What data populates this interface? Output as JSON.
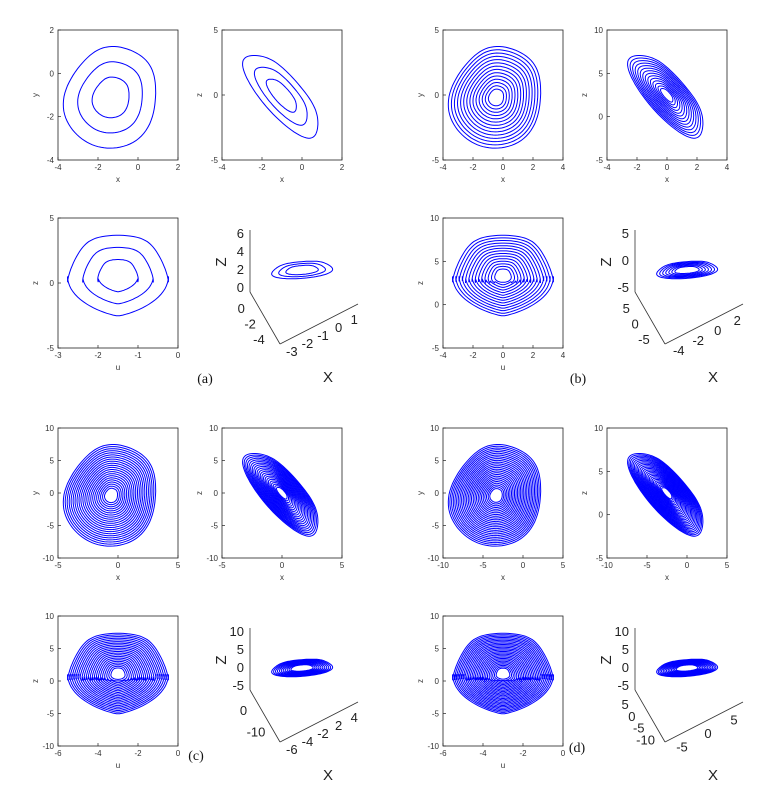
{
  "chart_data": [
    {
      "panel": "a",
      "caption": "(a)",
      "subplots": [
        {
          "type": "line",
          "plot": "phase",
          "xlabel": "x",
          "ylabel": "y",
          "xticks": [
            "-4",
            "-2",
            "0",
            "2"
          ],
          "yticks": [
            "2",
            "0",
            "-2",
            "-4"
          ],
          "xlim": [
            -4,
            2
          ],
          "ylim": [
            -4,
            2
          ],
          "shape": "loop",
          "color": "#0000ff"
        },
        {
          "type": "line",
          "plot": "phase",
          "xlabel": "x",
          "ylabel": "z",
          "xticks": [
            "-4",
            "-2",
            "0",
            "2"
          ],
          "yticks": [
            "5",
            "0",
            "-5"
          ],
          "xlim": [
            -4,
            2
          ],
          "ylim": [
            -5,
            6
          ],
          "shape": "diag",
          "color": "#0000ff"
        },
        {
          "type": "line",
          "plot": "phase",
          "xlabel": "u",
          "ylabel": "z",
          "xticks": [
            "-3",
            "-2",
            "-1",
            "0"
          ],
          "yticks": [
            "5",
            "0",
            "-5"
          ],
          "xlim": [
            -3,
            0.7
          ],
          "ylim": [
            -5,
            6
          ],
          "shape": "heart",
          "color": "#0000ff"
        },
        {
          "type": "line",
          "plot": "3d",
          "zlabel": "Z",
          "xlabel": "X",
          "zticks": [
            "6",
            "4",
            "2",
            "0"
          ],
          "ticks_a": [
            "0",
            "-2",
            "-4"
          ],
          "ticks_b": [
            "-3",
            "-2",
            "-1",
            "0",
            "1"
          ],
          "color": "#0000ff"
        }
      ]
    },
    {
      "panel": "b",
      "caption": "(b)",
      "subplots": [
        {
          "type": "line",
          "plot": "phase",
          "xlabel": "x",
          "ylabel": "y",
          "xticks": [
            "-4",
            "-2",
            "0",
            "2",
            "4"
          ],
          "yticks": [
            "5",
            "0",
            "-5"
          ],
          "xlim": [
            -4,
            4
          ],
          "ylim": [
            -5,
            5
          ],
          "shape": "loop",
          "color": "#0000ff"
        },
        {
          "type": "line",
          "plot": "phase",
          "xlabel": "x",
          "ylabel": "z",
          "xticks": [
            "-4",
            "-2",
            "0",
            "2",
            "4"
          ],
          "yticks": [
            "10",
            "5",
            "0",
            "-5"
          ],
          "xlim": [
            -4,
            4
          ],
          "ylim": [
            -6,
            10
          ],
          "shape": "diag",
          "color": "#0000ff"
        },
        {
          "type": "line",
          "plot": "phase",
          "xlabel": "u",
          "ylabel": "z",
          "xticks": [
            "-4",
            "-2",
            "0",
            "2",
            "4"
          ],
          "yticks": [
            "10",
            "5",
            "0",
            "-5"
          ],
          "xlim": [
            -4,
            4
          ],
          "ylim": [
            -6,
            10
          ],
          "shape": "heart",
          "color": "#0000ff"
        },
        {
          "type": "line",
          "plot": "3d",
          "zlabel": "Z",
          "xlabel": "X",
          "zticks": [
            "5",
            "0",
            "-5"
          ],
          "ticks_a": [
            "5",
            "0",
            "-5"
          ],
          "ticks_b": [
            "-4",
            "-2",
            "0",
            "2"
          ],
          "color": "#0000ff"
        }
      ]
    },
    {
      "panel": "c",
      "caption": "(c)",
      "subplots": [
        {
          "type": "line",
          "plot": "phase",
          "xlabel": "x",
          "ylabel": "y",
          "xticks": [
            "-5",
            "0",
            "5"
          ],
          "yticks": [
            "10",
            "5",
            "0",
            "-5",
            "-10"
          ],
          "xlim": [
            -6,
            5
          ],
          "ylim": [
            -10,
            10
          ],
          "shape": "loop",
          "color": "#0000ff"
        },
        {
          "type": "line",
          "plot": "phase",
          "xlabel": "x",
          "ylabel": "z",
          "xticks": [
            "-5",
            "0",
            "5"
          ],
          "yticks": [
            "10",
            "5",
            "0",
            "-5",
            "-10"
          ],
          "xlim": [
            -6,
            5
          ],
          "ylim": [
            -10,
            12
          ],
          "shape": "diag",
          "color": "#0000ff"
        },
        {
          "type": "line",
          "plot": "phase",
          "xlabel": "u",
          "ylabel": "z",
          "xticks": [
            "-6",
            "-4",
            "-2",
            "0"
          ],
          "yticks": [
            "10",
            "5",
            "0",
            "-5",
            "-10"
          ],
          "xlim": [
            -7,
            1
          ],
          "ylim": [
            -10,
            12
          ],
          "shape": "heart",
          "color": "#0000ff"
        },
        {
          "type": "line",
          "plot": "3d",
          "zlabel": "Z",
          "xlabel": "X",
          "zticks": [
            "10",
            "5",
            "0",
            "-5"
          ],
          "ticks_a": [
            "0",
            "-10"
          ],
          "ticks_b": [
            "-6",
            "-4",
            "-2",
            "2",
            "4"
          ],
          "color": "#0000ff"
        }
      ]
    },
    {
      "panel": "d",
      "caption": "(d)",
      "subplots": [
        {
          "type": "line",
          "plot": "phase",
          "xlabel": "x",
          "ylabel": "y",
          "xticks": [
            "-10",
            "-5",
            "0",
            "5"
          ],
          "yticks": [
            "10",
            "5",
            "0",
            "-5",
            "-10"
          ],
          "xlim": [
            -10,
            6
          ],
          "ylim": [
            -10,
            10
          ],
          "shape": "loop",
          "color": "#0000ff"
        },
        {
          "type": "line",
          "plot": "phase",
          "xlabel": "x",
          "ylabel": "z",
          "xticks": [
            "-10",
            "-5",
            "0",
            "5"
          ],
          "yticks": [
            "10",
            "5",
            "0",
            "-5"
          ],
          "xlim": [
            -10,
            6
          ],
          "ylim": [
            -6,
            12
          ],
          "shape": "diag",
          "color": "#0000ff"
        },
        {
          "type": "line",
          "plot": "phase",
          "xlabel": "u",
          "ylabel": "z",
          "xticks": [
            "-6",
            "-4",
            "-2",
            "0"
          ],
          "yticks": [
            "10",
            "5",
            "0",
            "-5",
            "-10"
          ],
          "xlim": [
            -7,
            1
          ],
          "ylim": [
            -10,
            12
          ],
          "shape": "heart",
          "color": "#0000ff"
        },
        {
          "type": "line",
          "plot": "3d",
          "zlabel": "Z",
          "xlabel": "X",
          "zticks": [
            "10",
            "5",
            "0",
            "-5"
          ],
          "ticks_a": [
            "5",
            "0",
            "-5",
            "-10"
          ],
          "ticks_b": [
            "-5",
            "0",
            "5"
          ],
          "color": "#0000ff"
        }
      ]
    }
  ]
}
